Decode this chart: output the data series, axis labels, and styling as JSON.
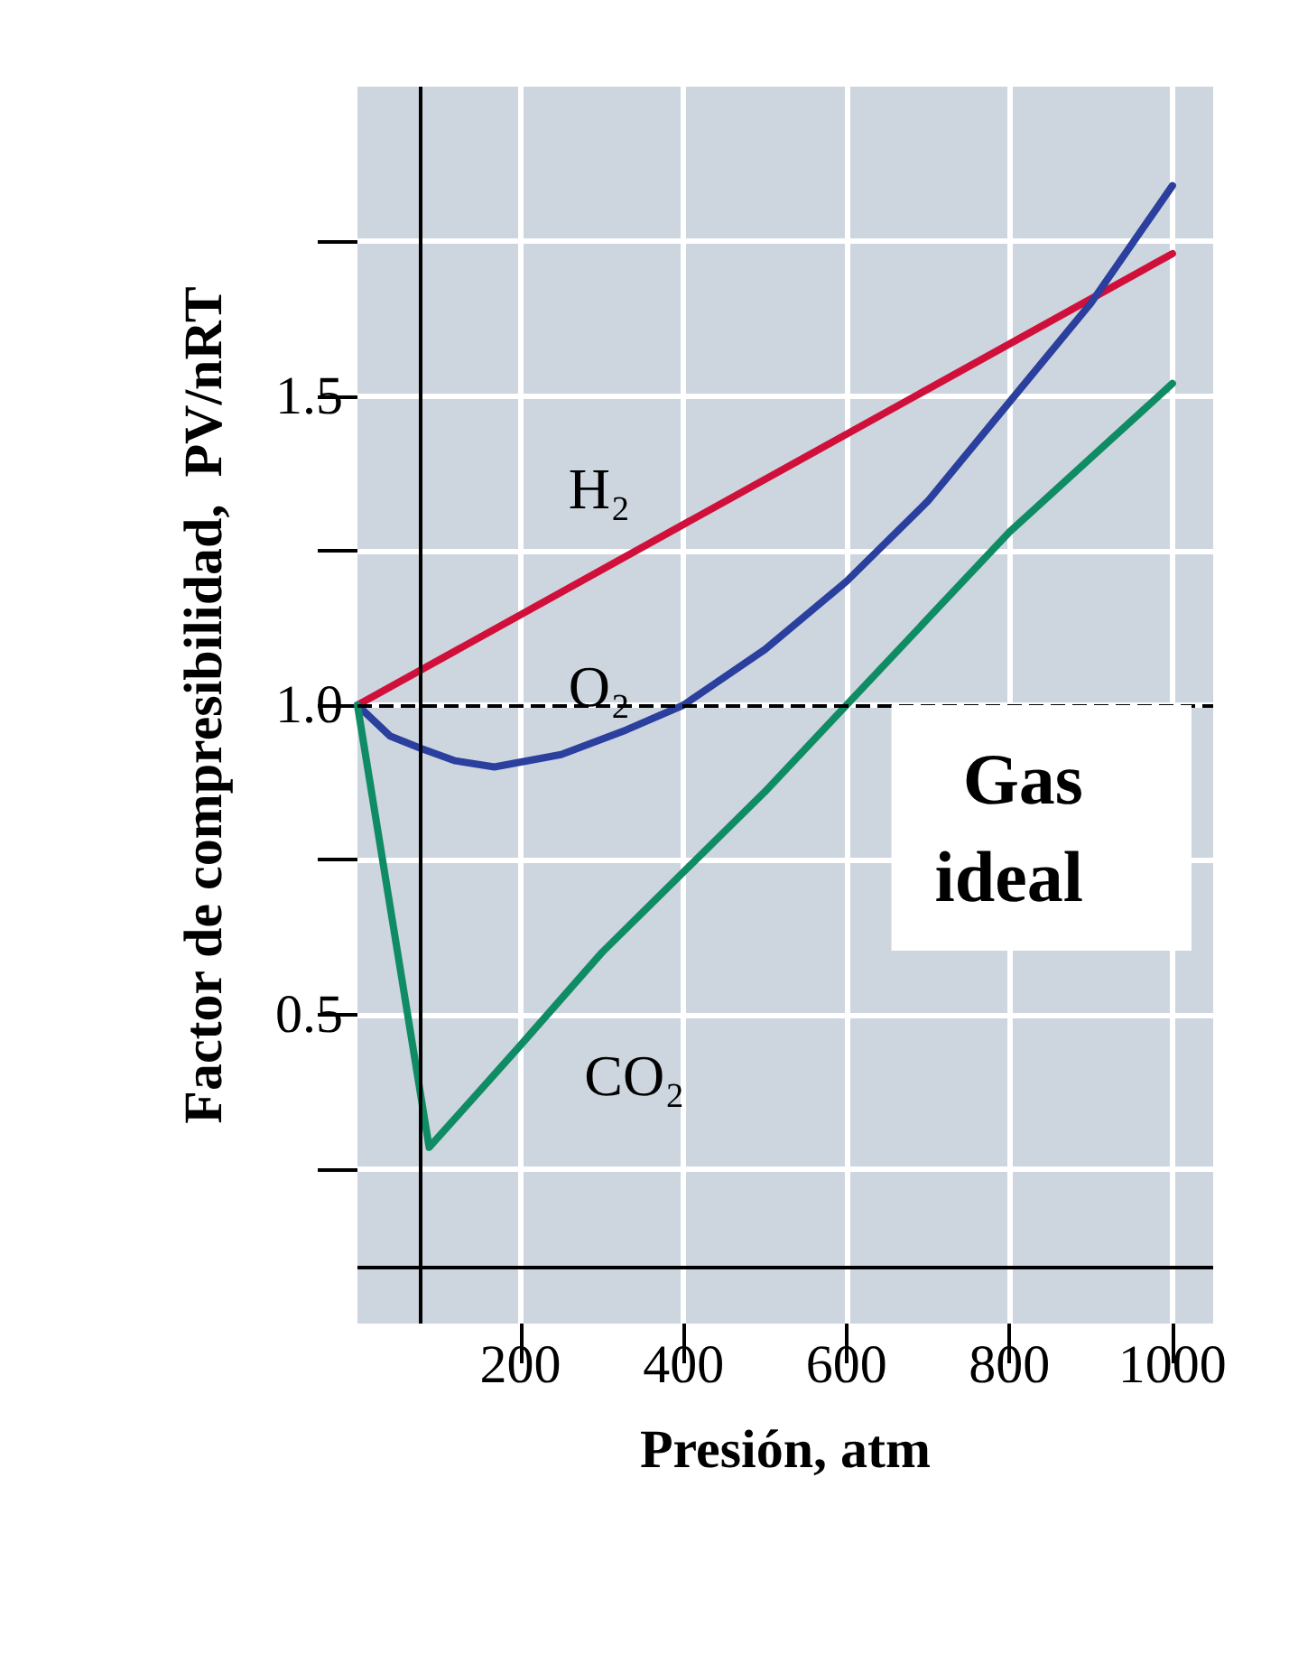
{
  "chart_data": {
    "type": "line",
    "xlabel": "Presión, atm",
    "ylabel": "Factor de compresibilidad,  PV/nRT",
    "xlim": [
      0,
      1050
    ],
    "xticks": [
      200,
      400,
      600,
      800,
      1000
    ],
    "ylim": [
      0,
      2
    ],
    "yticks": [
      {
        "value": 0.25,
        "label": null
      },
      {
        "value": 0.5,
        "label": "0.5"
      },
      {
        "value": 0.75,
        "label": null
      },
      {
        "value": 1,
        "label": "1.0"
      },
      {
        "value": 1.25,
        "label": null
      },
      {
        "value": 1.5,
        "label": "1.5"
      },
      {
        "value": 1.75,
        "label": null
      }
    ],
    "grid": true,
    "legend": false,
    "marker": "none",
    "line_style": "solid",
    "series": [
      {
        "name": "H₂",
        "color": "#d0103a",
        "x": [
          0,
          1000
        ],
        "values": [
          1.0,
          1.73
        ]
      },
      {
        "name": "O₂",
        "color": "#2b3f9e",
        "x": [
          0,
          40,
          78,
          120,
          168,
          250,
          330,
          400,
          500,
          600,
          700,
          800,
          900,
          1000
        ],
        "values": [
          1.0,
          0.95,
          0.93,
          0.91,
          0.9,
          0.92,
          0.96,
          1.0,
          1.09,
          1.2,
          1.33,
          1.49,
          1.65,
          1.84
        ]
      },
      {
        "name": "CO₂",
        "color": "#0f8c64",
        "x": [
          0,
          88,
          200,
          300,
          400,
          500,
          600,
          700,
          800,
          900,
          1000
        ],
        "values": [
          1.0,
          0.285,
          0.45,
          0.6,
          0.73,
          0.86,
          1.0,
          1.14,
          1.28,
          1.4,
          1.52
        ]
      }
    ],
    "ref_lines": [
      {
        "axis": "y",
        "value": 1,
        "label": "Gas\nideal",
        "color": "#000000",
        "line_style": "dashed"
      },
      {
        "axis": "x",
        "value": 78,
        "label": null,
        "color": "#000000",
        "line_style": "solid"
      },
      {
        "axis": "y",
        "value": 0.09,
        "label": null,
        "color": "#000000",
        "line_style": "solid"
      }
    ]
  }
}
